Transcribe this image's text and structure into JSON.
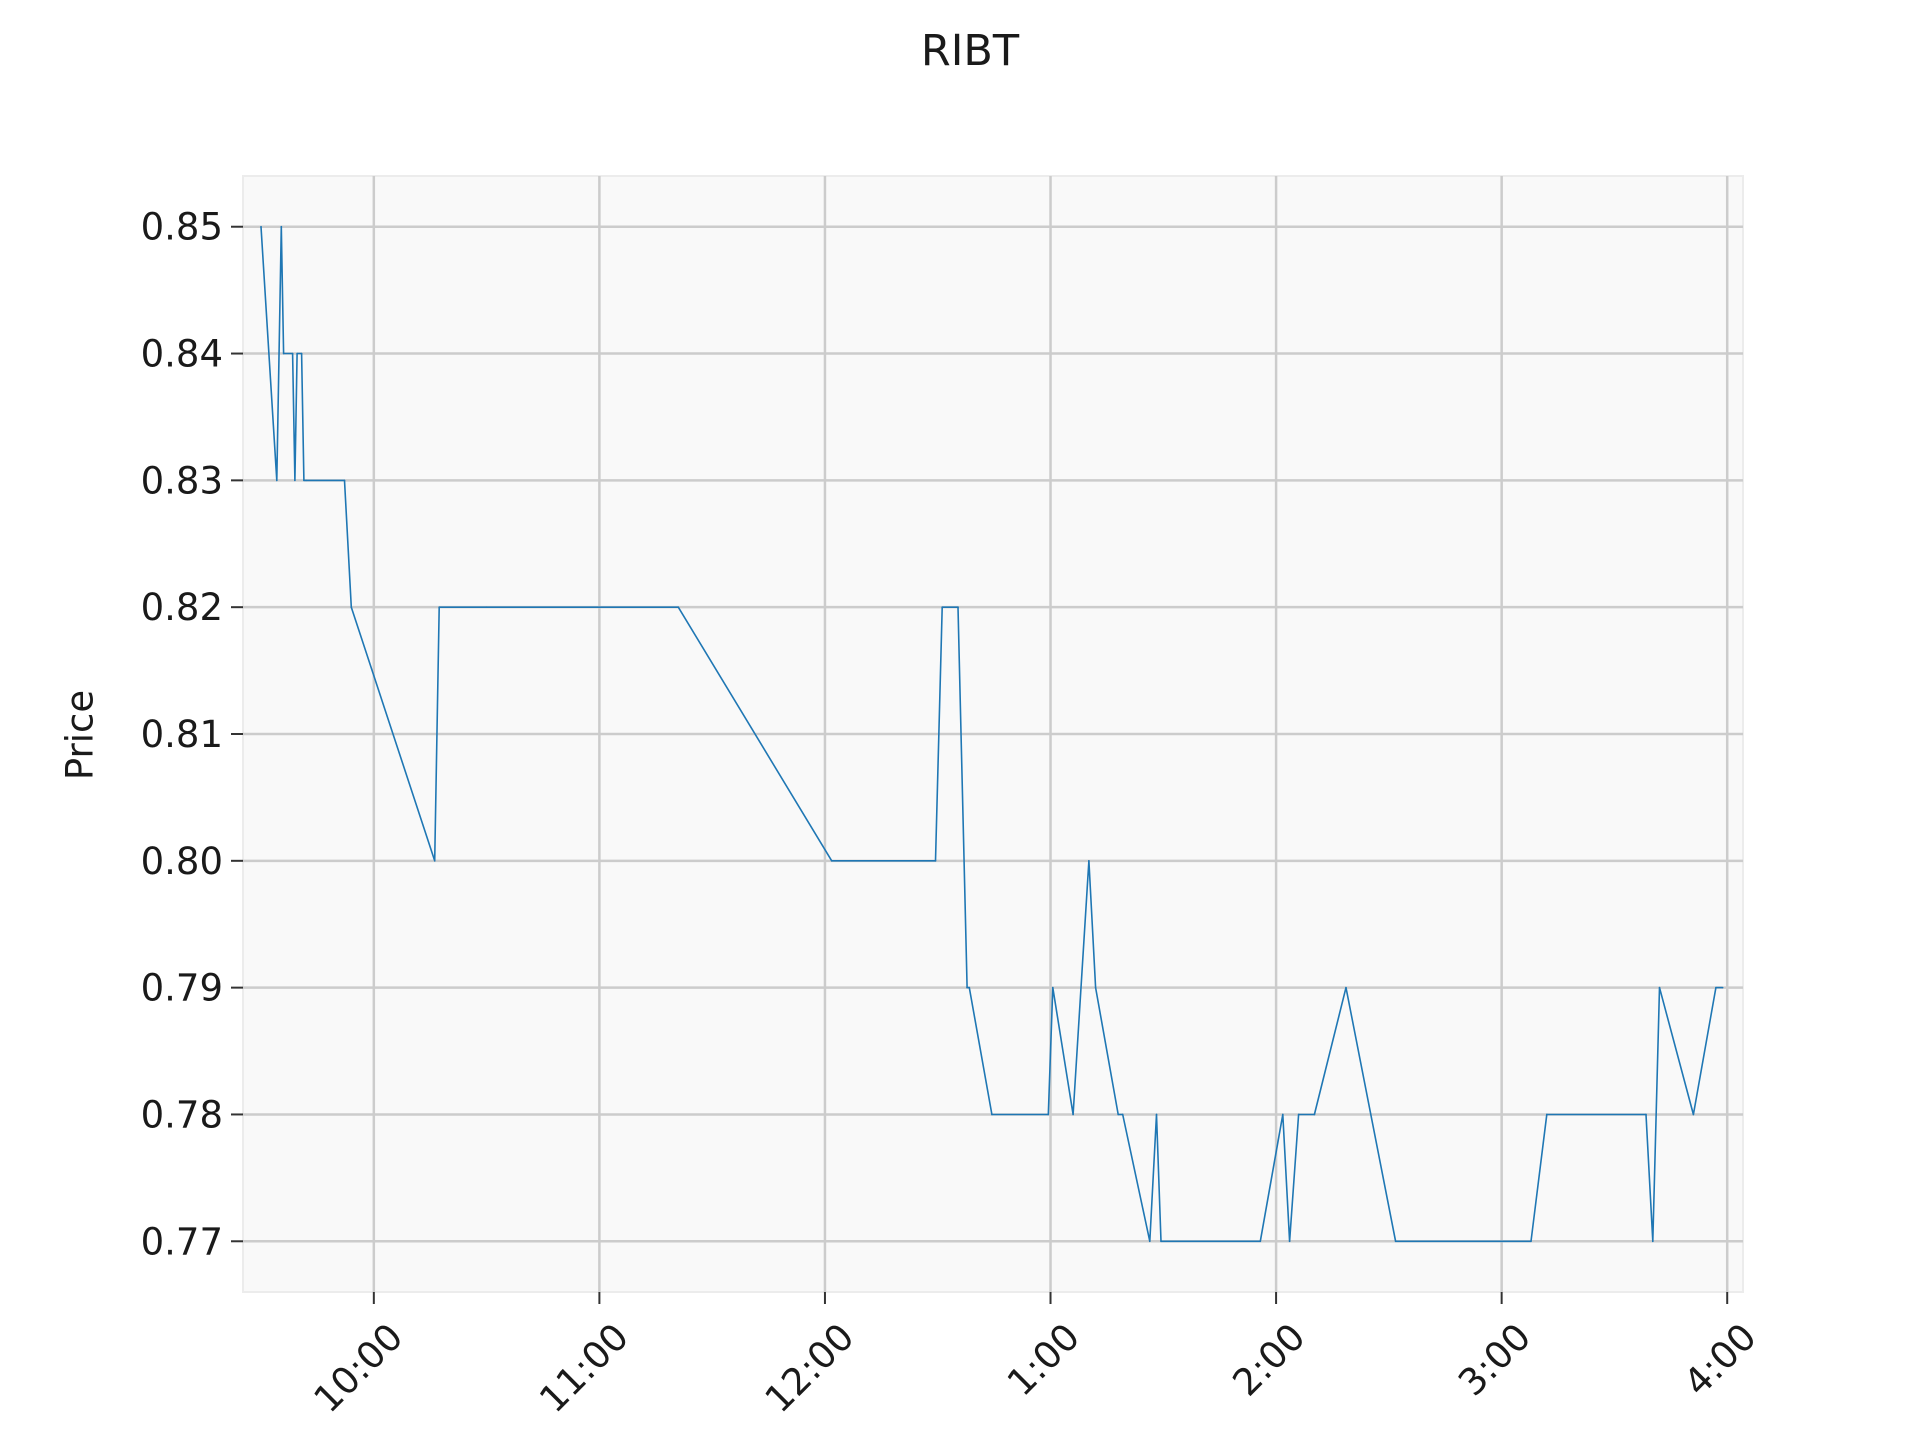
{
  "chart_data": {
    "type": "line",
    "title": "RIBT",
    "xlabel": "",
    "ylabel": "Price",
    "x_unit": "time of day (hours, 24h clock)",
    "x_ticks": [
      {
        "value": 10,
        "label": "10:00"
      },
      {
        "value": 11,
        "label": "11:00"
      },
      {
        "value": 12,
        "label": "12:00"
      },
      {
        "value": 13,
        "label": "1:00"
      },
      {
        "value": 14,
        "label": "2:00"
      },
      {
        "value": 15,
        "label": "3:00"
      },
      {
        "value": 16,
        "label": "4:00"
      }
    ],
    "y_ticks": [
      {
        "value": 0.77,
        "label": "0.77"
      },
      {
        "value": 0.78,
        "label": "0.78"
      },
      {
        "value": 0.79,
        "label": "0.79"
      },
      {
        "value": 0.8,
        "label": "0.80"
      },
      {
        "value": 0.81,
        "label": "0.81"
      },
      {
        "value": 0.82,
        "label": "0.82"
      },
      {
        "value": 0.83,
        "label": "0.83"
      },
      {
        "value": 0.84,
        "label": "0.84"
      },
      {
        "value": 0.85,
        "label": "0.85"
      }
    ],
    "xlim": [
      9.42,
      16.07
    ],
    "ylim": [
      0.766,
      0.854
    ],
    "grid": true,
    "colors": {
      "line": "#1f77b4",
      "plot_bg": "#f9f9f9",
      "grid": "#cccccc"
    },
    "series": [
      {
        "x": [
          9.5,
          9.57,
          9.59,
          9.6,
          9.64,
          9.65,
          9.66,
          9.68,
          9.69,
          9.7,
          9.87,
          9.9,
          10.27,
          10.29,
          10.5,
          11.35,
          12.03,
          12.49,
          12.52,
          12.59,
          12.63,
          12.64,
          12.74,
          12.99,
          13.01,
          13.1,
          13.17,
          13.2,
          13.3,
          13.32,
          13.44,
          13.47,
          13.49,
          13.93,
          14.03,
          14.06,
          14.1,
          14.17,
          14.31,
          14.53,
          15.13,
          15.2,
          15.64,
          15.67,
          15.7,
          15.85,
          15.95,
          15.98
        ],
        "y": [
          0.85,
          0.83,
          0.85,
          0.84,
          0.84,
          0.83,
          0.84,
          0.84,
          0.83,
          0.83,
          0.83,
          0.82,
          0.8,
          0.82,
          0.82,
          0.82,
          0.8,
          0.8,
          0.82,
          0.82,
          0.79,
          0.79,
          0.78,
          0.78,
          0.79,
          0.78,
          0.8,
          0.79,
          0.78,
          0.78,
          0.77,
          0.78,
          0.77,
          0.77,
          0.78,
          0.77,
          0.78,
          0.78,
          0.79,
          0.77,
          0.77,
          0.78,
          0.78,
          0.77,
          0.79,
          0.78,
          0.79,
          0.79
        ]
      }
    ]
  }
}
